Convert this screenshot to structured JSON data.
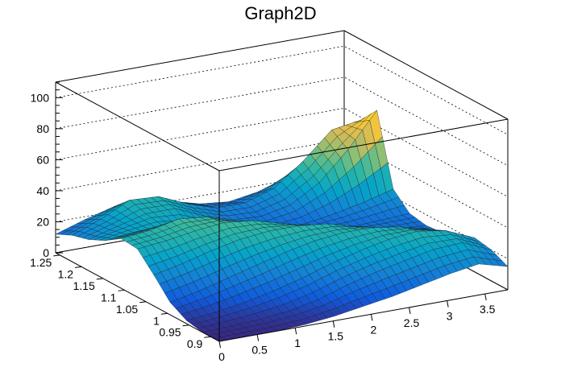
{
  "chart_data": {
    "type": "surface",
    "title": "Graph2D",
    "x_axis": {
      "range": [
        0,
        3.8
      ],
      "ticks": [
        "0",
        "0.5",
        "1",
        "1.5",
        "2",
        "2.5",
        "3",
        "3.5"
      ],
      "tick_values": [
        0,
        0.5,
        1,
        1.5,
        2,
        2.5,
        3,
        3.5
      ]
    },
    "y_axis": {
      "range": [
        0.88,
        1.26
      ],
      "ticks": [
        "0.9",
        "0.95",
        "1",
        "1.05",
        "1.1",
        "1.15",
        "1.2",
        "1.25"
      ],
      "tick_values": [
        0.9,
        0.95,
        1,
        1.05,
        1.1,
        1.15,
        1.2,
        1.25
      ]
    },
    "z_axis": {
      "range": [
        0,
        110
      ],
      "ticks": [
        "0",
        "20",
        "40",
        "60",
        "80",
        "100"
      ],
      "tick_values": [
        0,
        20,
        40,
        60,
        80,
        100
      ]
    },
    "grid": true,
    "colormap": [
      "#352a87",
      "#0f5cdd",
      "#1481d6",
      "#06a4ca",
      "#2eb7a4",
      "#87bf77",
      "#d1bb59",
      "#fec832",
      "#f9fb0e"
    ],
    "surface": {
      "x": [
        0,
        0.38,
        0.76,
        1.14,
        1.52,
        1.9,
        2.28,
        2.66,
        3.04,
        3.42,
        3.8
      ],
      "y": [
        0.88,
        0.918,
        0.956,
        0.994,
        1.032,
        1.07,
        1.108,
        1.146,
        1.184,
        1.222,
        1.26
      ],
      "z": [
        [
          0,
          0,
          0,
          1,
          3,
          6,
          9,
          13,
          17,
          20,
          15
        ],
        [
          0,
          1,
          2,
          4,
          8,
          14,
          19,
          23,
          27,
          28,
          20
        ],
        [
          2,
          4,
          7,
          11,
          16,
          22,
          27,
          31,
          33,
          30,
          22
        ],
        [
          8,
          12,
          17,
          22,
          27,
          31,
          33,
          33,
          30,
          25,
          18
        ],
        [
          20,
          24,
          29,
          33,
          35,
          35,
          33,
          28,
          23,
          18,
          14
        ],
        [
          31,
          33,
          36,
          38,
          36,
          31,
          25,
          20,
          16,
          14,
          13
        ],
        [
          32,
          34,
          38,
          36,
          29,
          22,
          17,
          14,
          13,
          14,
          15
        ],
        [
          25,
          27,
          28,
          24,
          18,
          14,
          12,
          13,
          16,
          20,
          25
        ],
        [
          20,
          25,
          30,
          30,
          22,
          16,
          15,
          19,
          30,
          48,
          70
        ],
        [
          17,
          24,
          33,
          32,
          24,
          18,
          18,
          24,
          38,
          55,
          58
        ],
        [
          12,
          18,
          23,
          24,
          20,
          15,
          13,
          16,
          22,
          28,
          28
        ]
      ]
    }
  }
}
